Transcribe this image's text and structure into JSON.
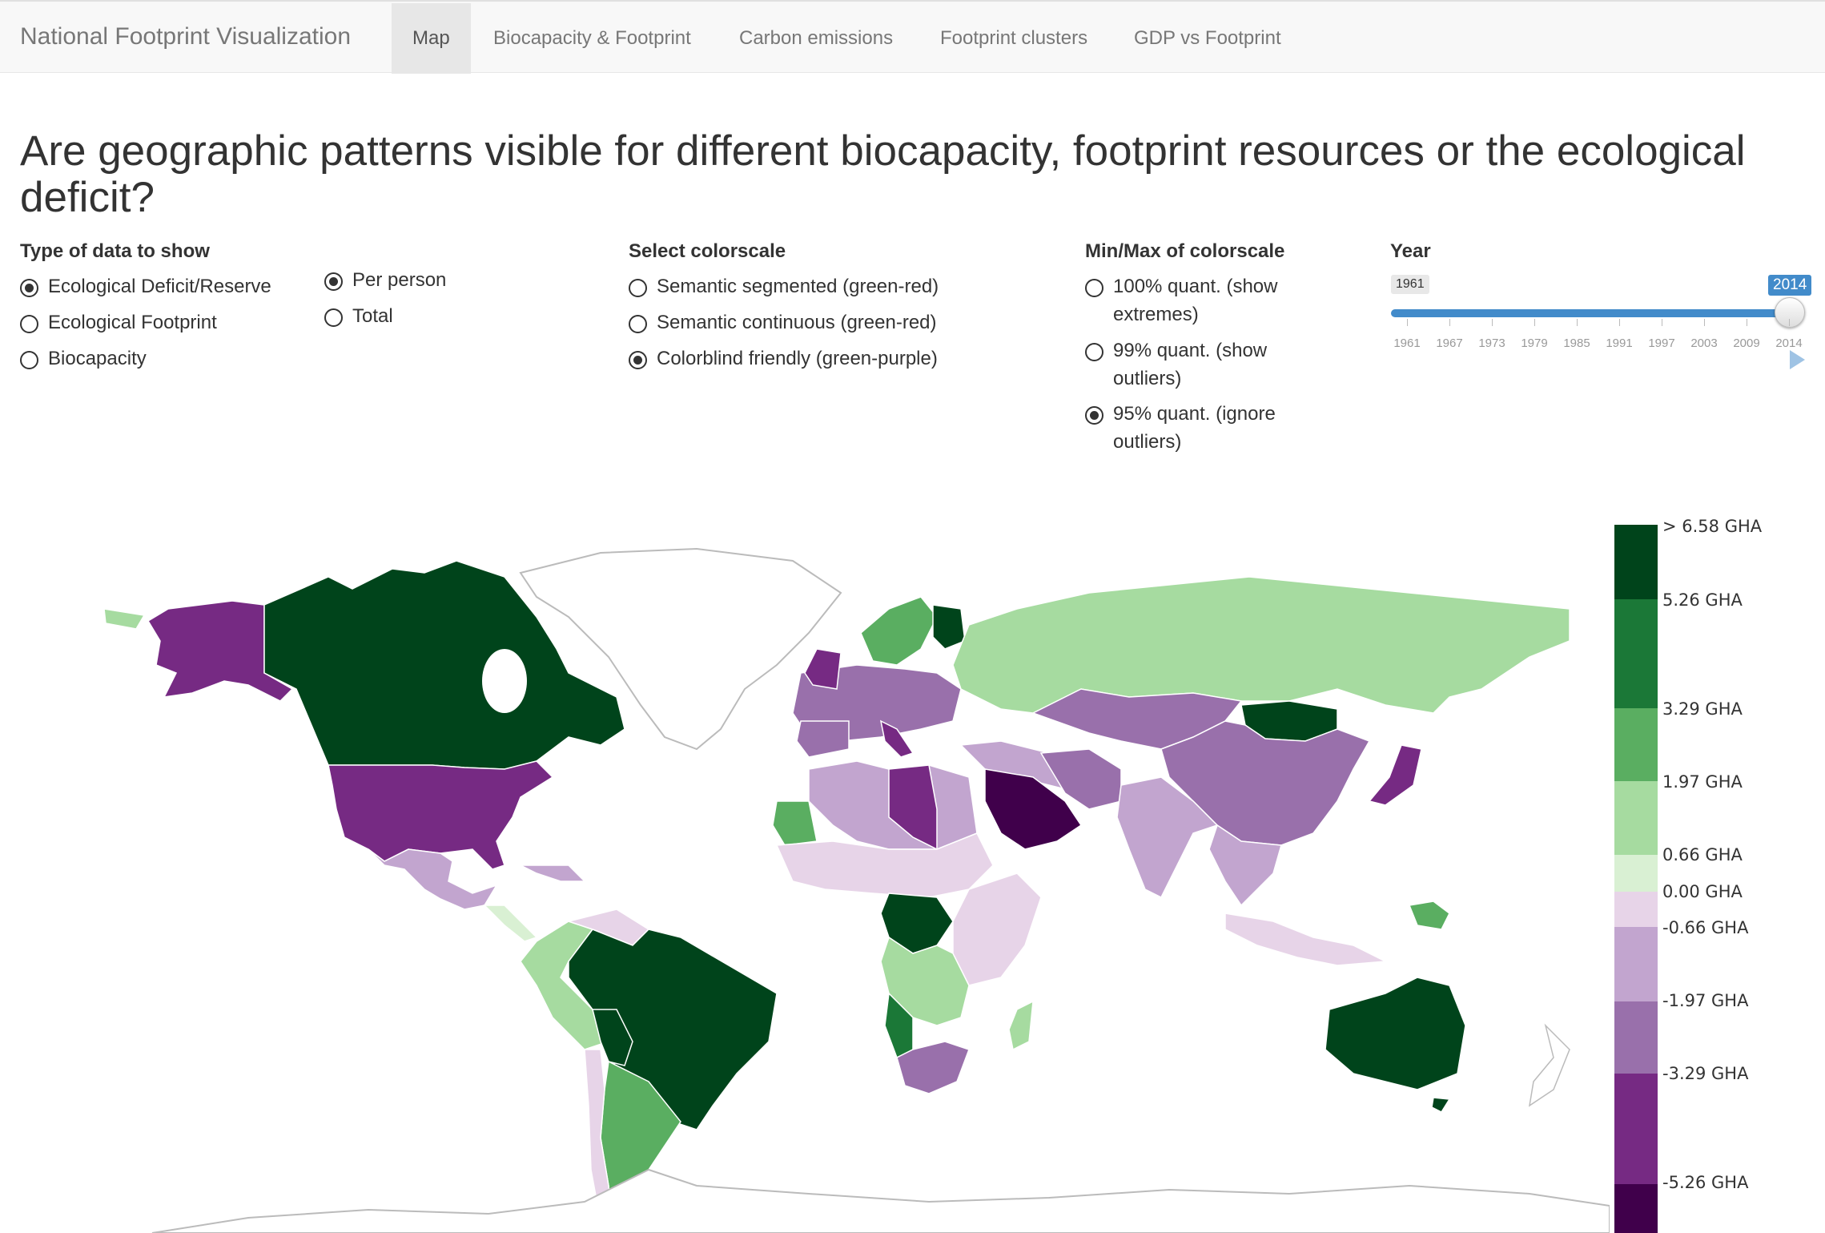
{
  "navbar": {
    "brand": "National Footprint Visualization",
    "tabs": [
      {
        "label": "Map",
        "active": true
      },
      {
        "label": "Biocapacity & Footprint",
        "active": false
      },
      {
        "label": "Carbon emissions",
        "active": false
      },
      {
        "label": "Footprint clusters",
        "active": false
      },
      {
        "label": "GDP vs Footprint",
        "active": false
      }
    ]
  },
  "headline": "Are geographic patterns visible for different biocapacity, footprint resources or the ecological deficit?",
  "data_type": {
    "label": "Type of data to show",
    "options": [
      {
        "label": "Ecological Deficit/Reserve",
        "checked": true
      },
      {
        "label": "Ecological Footprint",
        "checked": false
      },
      {
        "label": "Biocapacity",
        "checked": false
      }
    ],
    "scope": [
      {
        "label": "Per person",
        "checked": true
      },
      {
        "label": "Total",
        "checked": false
      }
    ]
  },
  "colorscale": {
    "label": "Select colorscale",
    "options": [
      {
        "label": "Semantic segmented (green-red)",
        "checked": false
      },
      {
        "label": "Semantic continuous (green-red)",
        "checked": false
      },
      {
        "label": "Colorblind friendly (green-purple)",
        "checked": true
      }
    ]
  },
  "minmax": {
    "label": "Min/Max of colorscale",
    "options": [
      {
        "line1": "100% quant. (show",
        "line2": "extremes)",
        "checked": false
      },
      {
        "line1": "99% quant. (show",
        "line2": "outliers)",
        "checked": false
      },
      {
        "line1": "95% quant. (ignore",
        "line2": "outliers)",
        "checked": true
      }
    ]
  },
  "year": {
    "label": "Year",
    "min": "1961",
    "max": "2014",
    "value": "2014",
    "ticks": [
      "1961",
      "1967",
      "1973",
      "1979",
      "1985",
      "1991",
      "1997",
      "2003",
      "2009",
      "2014"
    ]
  },
  "legend": {
    "labels": [
      "> 6.58 GHA",
      "5.26 GHA",
      "3.29 GHA",
      "1.97 GHA",
      "0.66 GHA",
      "0.00 GHA",
      "-0.66 GHA",
      "-1.97 GHA",
      "-3.29 GHA",
      "-5.26 GHA"
    ],
    "colors": [
      "#00441b",
      "#1b7837",
      "#5aae61",
      "#a6dba0",
      "#d9f0d3",
      "#e7d4e8",
      "#c2a5cf",
      "#9970ab",
      "#762a83",
      "#40004b"
    ]
  },
  "map": {
    "country_colors": {
      "canada": "#00441b",
      "greenland": "#ffffff",
      "alaska": "#762a83",
      "usa": "#762a83",
      "mexico": "#c2a5cf",
      "central_america": "#d9f0d3",
      "caribbean": "#c2a5cf",
      "brazil": "#00441b",
      "colombia": "#a6dba0",
      "peru": "#a6dba0",
      "bolivia": "#00441b",
      "argentina": "#5aae61",
      "chile": "#e7d4e8",
      "uruguay": "#00441b",
      "guiana": "#00441b",
      "west_africa": "#e7d4e8",
      "mauritania": "#5aae61",
      "libya": "#762a83",
      "algeria": "#c2a5cf",
      "egypt": "#e7d4e8",
      "central_africa": "#00441b",
      "congo": "#a6dba0",
      "east_africa": "#e7d4e8",
      "angola": "#a6dba0",
      "namibia": "#1b7837",
      "south_africa": "#9970ab",
      "madagascar": "#a6dba0",
      "saudi": "#40004b",
      "middle_east": "#c2a5cf",
      "iran": "#9970ab",
      "india": "#c2a5cf",
      "central_asia": "#9970ab",
      "russia": "#a6dba0",
      "mongolia": "#00441b",
      "china": "#9970ab",
      "japan": "#762a83",
      "se_asia": "#c2a5cf",
      "indonesia": "#e7d4e8",
      "png": "#5aae61",
      "australia": "#00441b",
      "europe": "#9970ab",
      "uk": "#762a83",
      "scandinavia": "#5aae61",
      "finland": "#00441b",
      "italy": "#762a83",
      "spain": "#9970ab"
    }
  }
}
